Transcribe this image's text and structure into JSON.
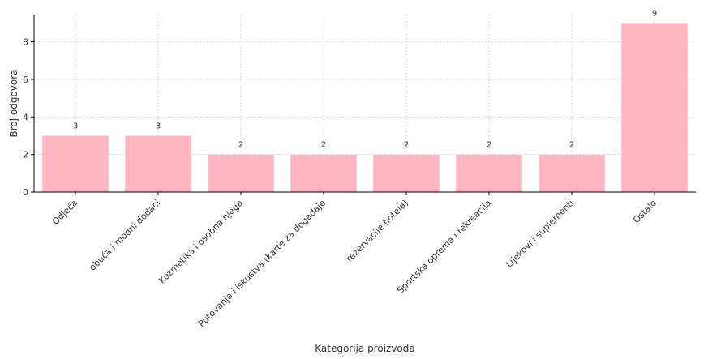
{
  "chart_data": {
    "type": "bar",
    "title": "",
    "xlabel": "Kategorija proizvoda",
    "ylabel": "Broj odgovora",
    "categories": [
      "Odjeća",
      "obuća i modni dodaci",
      "Kozmetika i osobna njega",
      "Putovanja i iskustva (karte za događaje",
      "rezervacije hotela)",
      "Sportska oprema i rekreacija",
      "Lijekovi i suplementi",
      "Ostalo"
    ],
    "values": [
      3,
      3,
      2,
      2,
      2,
      2,
      2,
      9
    ],
    "ylim": [
      0,
      9.45
    ],
    "yticks": [
      0,
      2,
      4,
      6,
      8
    ],
    "grid": true,
    "bar_color": "#ffb6c1"
  }
}
